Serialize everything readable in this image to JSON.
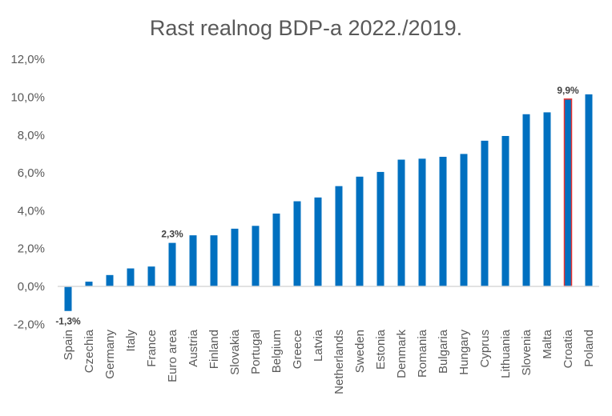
{
  "chart_data": {
    "type": "bar",
    "title": "Rast realnog BDP-a 2022./2019.",
    "xlabel": "",
    "ylabel": "",
    "ylim": [
      -2.0,
      12.0
    ],
    "yticks": [
      -2.0,
      0.0,
      2.0,
      4.0,
      6.0,
      8.0,
      10.0,
      12.0
    ],
    "ytick_labels": [
      "-2,0%",
      "0,0%",
      "2,0%",
      "4,0%",
      "6,0%",
      "8,0%",
      "10,0%",
      "12,0%"
    ],
    "grid": false,
    "legend": "none",
    "categories": [
      "Spain",
      "Czechia",
      "Germany",
      "Italy",
      "France",
      "Euro area",
      "Austria",
      "Finland",
      "Slovakia",
      "Portugal",
      "Belgium",
      "Greece",
      "Latvia",
      "Netherlands",
      "Sweden",
      "Estonia",
      "Denmark",
      "Romania",
      "Bulgaria",
      "Hungary",
      "Cyprus",
      "Lithuania",
      "Slovenia",
      "Malta",
      "Croatia",
      "Poland"
    ],
    "series": [
      {
        "name": "Rast realnog BDP-a 2022./2019.",
        "unit": "%",
        "values": [
          -1.3,
          0.25,
          0.6,
          0.95,
          1.05,
          2.3,
          2.7,
          2.7,
          3.05,
          3.2,
          3.85,
          4.5,
          4.7,
          5.3,
          5.8,
          6.05,
          6.7,
          6.75,
          6.85,
          7.0,
          7.7,
          7.95,
          9.1,
          9.2,
          9.9,
          10.15
        ]
      }
    ],
    "annotations": [
      {
        "category": "Spain",
        "text": "-1,3%"
      },
      {
        "category": "Euro area",
        "text": "2,3%"
      },
      {
        "category": "Croatia",
        "text": "9,9%"
      }
    ],
    "highlight": {
      "category": "Croatia",
      "outline_color": "#e8312f"
    },
    "colors": {
      "bar": "#0070c0",
      "axis": "#d9d9d9",
      "text": "#595959",
      "label": "#404040"
    }
  }
}
